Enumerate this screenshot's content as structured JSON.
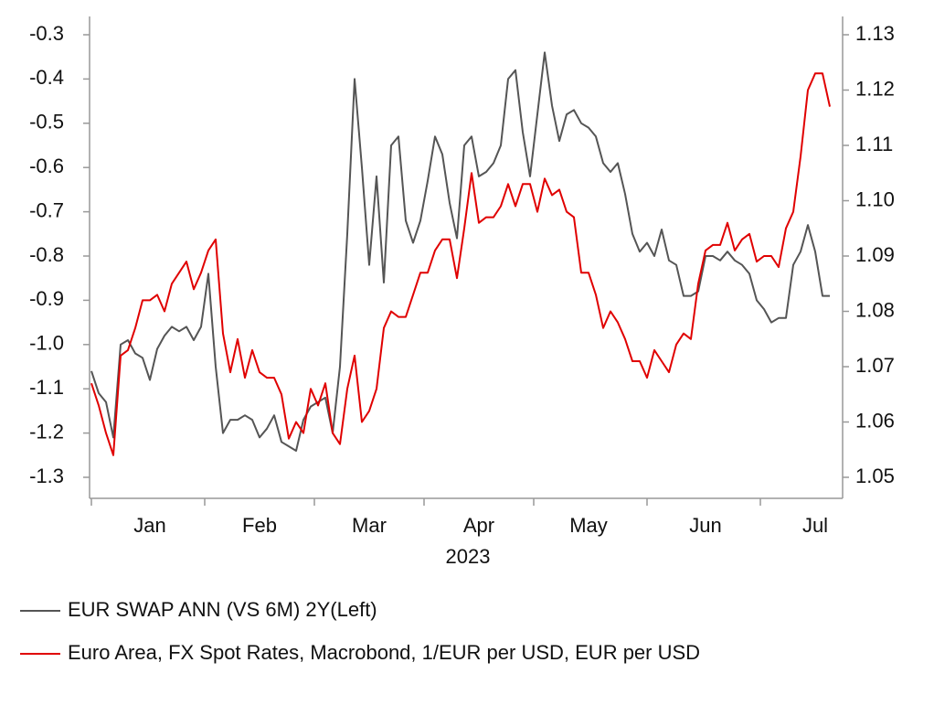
{
  "chart_data": {
    "type": "line",
    "categories": [
      null,
      null,
      null,
      null,
      null,
      null,
      null,
      null,
      "Jan",
      null,
      null,
      null,
      null,
      null,
      null,
      null,
      null,
      null,
      null,
      null,
      null,
      null,
      null,
      "Feb",
      null,
      null,
      null,
      null,
      null,
      null,
      null,
      null,
      null,
      null,
      null,
      null,
      null,
      null,
      "Mar",
      null,
      null,
      null,
      null,
      null,
      null,
      null,
      null,
      null,
      null,
      null,
      null,
      null,
      null,
      "Apr",
      null,
      null,
      null,
      null,
      null,
      null,
      null,
      null,
      null,
      null,
      null,
      null,
      null,
      null,
      "May",
      null,
      null,
      null,
      null,
      null,
      null,
      null,
      null,
      null,
      null,
      null,
      null,
      null,
      null,
      null,
      "Jun",
      null,
      null,
      null,
      null,
      null,
      null,
      null,
      null,
      null,
      null,
      null,
      null,
      null,
      null,
      "Jul",
      null,
      null
    ],
    "xlabel": "2023",
    "series": [
      {
        "name": "EUR SWAP ANN (VS 6M) 2Y(Left)",
        "color": "#555555",
        "axis": "y",
        "values": [
          -1.06,
          -1.11,
          -1.13,
          -1.21,
          -1.0,
          -0.99,
          -1.02,
          -1.03,
          -1.08,
          -1.01,
          -0.98,
          -0.96,
          -0.97,
          -0.96,
          -0.99,
          -0.96,
          -0.84,
          -1.05,
          -1.2,
          -1.17,
          -1.17,
          -1.16,
          -1.17,
          -1.21,
          -1.19,
          -1.16,
          -1.22,
          -1.23,
          -1.24,
          -1.17,
          -1.14,
          -1.13,
          -1.12,
          -1.2,
          -1.05,
          -0.75,
          -0.4,
          -0.6,
          -0.82,
          -0.62,
          -0.86,
          -0.55,
          -0.53,
          -0.72,
          -0.77,
          -0.72,
          -0.63,
          -0.53,
          -0.57,
          -0.68,
          -0.76,
          -0.55,
          -0.53,
          -0.62,
          -0.61,
          -0.59,
          -0.55,
          -0.4,
          -0.38,
          -0.52,
          -0.62,
          -0.48,
          -0.34,
          -0.46,
          -0.54,
          -0.48,
          -0.47,
          -0.5,
          -0.51,
          -0.53,
          -0.59,
          -0.61,
          -0.59,
          -0.66,
          -0.75,
          -0.79,
          -0.77,
          -0.8,
          -0.74,
          -0.81,
          -0.82,
          -0.89,
          -0.89,
          -0.88,
          -0.8,
          -0.8,
          -0.81,
          -0.79,
          -0.81,
          -0.82,
          -0.84,
          -0.9,
          -0.92,
          -0.95,
          -0.94,
          -0.94,
          -0.82,
          -0.79,
          -0.73,
          -0.79,
          -0.89,
          -0.89
        ]
      },
      {
        "name": "Euro Area, FX Spot Rates, Macrobond, 1/EUR per USD, EUR per USD",
        "color": "#e00000",
        "axis": "y2",
        "values": [
          1.067,
          1.063,
          1.058,
          1.054,
          1.072,
          1.073,
          1.077,
          1.082,
          1.082,
          1.083,
          1.08,
          1.085,
          1.087,
          1.089,
          1.084,
          1.087,
          1.091,
          1.093,
          1.076,
          1.069,
          1.075,
          1.068,
          1.073,
          1.069,
          1.068,
          1.068,
          1.065,
          1.057,
          1.06,
          1.058,
          1.066,
          1.063,
          1.067,
          1.058,
          1.056,
          1.066,
          1.072,
          1.06,
          1.062,
          1.066,
          1.077,
          1.08,
          1.079,
          1.079,
          1.083,
          1.087,
          1.087,
          1.091,
          1.093,
          1.093,
          1.086,
          1.095,
          1.105,
          1.096,
          1.097,
          1.097,
          1.099,
          1.103,
          1.099,
          1.103,
          1.103,
          1.098,
          1.104,
          1.101,
          1.102,
          1.098,
          1.097,
          1.087,
          1.087,
          1.083,
          1.077,
          1.08,
          1.078,
          1.075,
          1.071,
          1.071,
          1.068,
          1.073,
          1.071,
          1.069,
          1.074,
          1.076,
          1.075,
          1.085,
          1.091,
          1.092,
          1.092,
          1.096,
          1.091,
          1.093,
          1.094,
          1.089,
          1.09,
          1.09,
          1.088,
          1.095,
          1.098,
          1.108,
          1.12,
          1.123,
          1.123,
          1.117
        ]
      }
    ],
    "ylim": [
      -1.3,
      -0.3
    ],
    "yticks": [
      -0.3,
      -0.4,
      -0.5,
      -0.6,
      -0.7,
      -0.8,
      -0.9,
      {
        "value": -1,
        "label": "-1.0"
      },
      -1.1,
      -1.2,
      -1.3
    ],
    "y2lim": [
      1.05,
      1.13
    ],
    "y2ticks": [
      1.13,
      1.12,
      1.11,
      {
        "value": 1.1,
        "label": "1.10"
      },
      1.09,
      1.08,
      1.07,
      1.06,
      1.05
    ],
    "grid": false
  }
}
